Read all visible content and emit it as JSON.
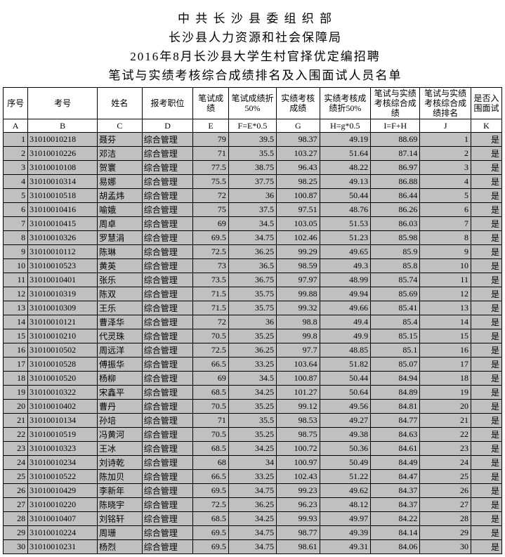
{
  "titles": [
    "中 共 长 沙 县 委 组 织 部",
    "长沙县人力资源和社会保障局",
    "2016年8月长沙县大学生村官择优定编招聘",
    "笔试与实绩考核综合成绩排名及入围面试人员名单"
  ],
  "headers": [
    "序号",
    "考号",
    "姓名",
    "报考职位",
    "笔试成绩",
    "笔试成绩折50%",
    "实绩考核成绩",
    "实绩考核成绩折50%",
    "笔试与实绩考核综合成绩",
    "笔试与实绩考核综合成绩排名",
    "是否入围面试"
  ],
  "letters": [
    "A",
    "B",
    "C",
    "D",
    "E",
    "F=E*0.5",
    "G",
    "H=g*0.5",
    "I=F+H",
    "J",
    "K"
  ],
  "rows": [
    {
      "i": "1",
      "e": "31010010218",
      "n": "聂芬",
      "p": "综合管理",
      "s": "79",
      "f": "39.5",
      "g": "98.37",
      "h": "49.19",
      "t": "88.69",
      "r": "1",
      "k": "是"
    },
    {
      "i": "2",
      "e": "31010010226",
      "n": "邓洁",
      "p": "综合管理",
      "s": "71",
      "f": "35.5",
      "g": "103.27",
      "h": "51.64",
      "t": "87.14",
      "r": "2",
      "k": "是"
    },
    {
      "i": "3",
      "e": "31010010108",
      "n": "贺寰",
      "p": "综合管理",
      "s": "77.5",
      "f": "38.75",
      "g": "96.43",
      "h": "48.22",
      "t": "86.97",
      "r": "3",
      "k": "是"
    },
    {
      "i": "4",
      "e": "31010010314",
      "n": "易娜",
      "p": "综合管理",
      "s": "75.5",
      "f": "37.75",
      "g": "98.25",
      "h": "49.13",
      "t": "86.88",
      "r": "4",
      "k": "是"
    },
    {
      "i": "5",
      "e": "31010010518",
      "n": "胡孟炜",
      "p": "综合管理",
      "s": "72",
      "f": "36",
      "g": "100.87",
      "h": "50.44",
      "t": "86.44",
      "r": "5",
      "k": "是"
    },
    {
      "i": "6",
      "e": "31010010416",
      "n": "喻娥",
      "p": "综合管理",
      "s": "75",
      "f": "37.5",
      "g": "97.51",
      "h": "48.76",
      "t": "86.26",
      "r": "6",
      "k": "是"
    },
    {
      "i": "7",
      "e": "31010010415",
      "n": "周卓",
      "p": "综合管理",
      "s": "69",
      "f": "34.5",
      "g": "103.05",
      "h": "51.53",
      "t": "86.03",
      "r": "7",
      "k": "是"
    },
    {
      "i": "8",
      "e": "31010010326",
      "n": "罗慧涓",
      "p": "综合管理",
      "s": "69.5",
      "f": "34.75",
      "g": "102.46",
      "h": "51.23",
      "t": "85.98",
      "r": "8",
      "k": "是"
    },
    {
      "i": "9",
      "e": "31010010112",
      "n": "陈琳",
      "p": "综合管理",
      "s": "72.5",
      "f": "36.25",
      "g": "99.29",
      "h": "49.65",
      "t": "85.9",
      "r": "9",
      "k": "是"
    },
    {
      "i": "10",
      "e": "31010010523",
      "n": "黄英",
      "p": "综合管理",
      "s": "73",
      "f": "36.5",
      "g": "98.59",
      "h": "49.3",
      "t": "85.8",
      "r": "10",
      "k": "是"
    },
    {
      "i": "11",
      "e": "31010010401",
      "n": "张乐",
      "p": "综合管理",
      "s": "73.5",
      "f": "36.75",
      "g": "97.97",
      "h": "48.99",
      "t": "85.74",
      "r": "11",
      "k": "是"
    },
    {
      "i": "12",
      "e": "31010010319",
      "n": "陈双",
      "p": "综合管理",
      "s": "71.5",
      "f": "35.75",
      "g": "99.88",
      "h": "49.94",
      "t": "85.69",
      "r": "12",
      "k": "是"
    },
    {
      "i": "13",
      "e": "31010010309",
      "n": "王乐",
      "p": "综合管理",
      "s": "71.5",
      "f": "35.75",
      "g": "99.32",
      "h": "49.66",
      "t": "85.41",
      "r": "13",
      "k": "是"
    },
    {
      "i": "14",
      "e": "31010010121",
      "n": "曹泽华",
      "p": "综合管理",
      "s": "72",
      "f": "36",
      "g": "98.8",
      "h": "49.4",
      "t": "85.4",
      "r": "14",
      "k": "是"
    },
    {
      "i": "15",
      "e": "31010010210",
      "n": "代灵珠",
      "p": "综合管理",
      "s": "70.5",
      "f": "35.25",
      "g": "99.8",
      "h": "49.9",
      "t": "85.15",
      "r": "15",
      "k": "是"
    },
    {
      "i": "16",
      "e": "31010010502",
      "n": "周远洋",
      "p": "综合管理",
      "s": "72.5",
      "f": "36.25",
      "g": "97.7",
      "h": "48.85",
      "t": "85.1",
      "r": "16",
      "k": "是"
    },
    {
      "i": "17",
      "e": "31010010528",
      "n": "傅振华",
      "p": "综合管理",
      "s": "66.5",
      "f": "33.25",
      "g": "103.64",
      "h": "51.82",
      "t": "85.07",
      "r": "17",
      "k": "是"
    },
    {
      "i": "18",
      "e": "31010010520",
      "n": "杨柳",
      "p": "综合管理",
      "s": "69",
      "f": "34.5",
      "g": "100.87",
      "h": "50.44",
      "t": "84.94",
      "r": "18",
      "k": "是"
    },
    {
      "i": "19",
      "e": "31010010322",
      "n": "宋鑫平",
      "p": "综合管理",
      "s": "68.5",
      "f": "34.25",
      "g": "101.27",
      "h": "50.64",
      "t": "84.89",
      "r": "19",
      "k": "是"
    },
    {
      "i": "20",
      "e": "31010010402",
      "n": "曹丹",
      "p": "综合管理",
      "s": "70.5",
      "f": "35.25",
      "g": "99.12",
      "h": "49.56",
      "t": "84.81",
      "r": "20",
      "k": "是"
    },
    {
      "i": "21",
      "e": "31010010134",
      "n": "孙培",
      "p": "综合管理",
      "s": "71",
      "f": "35.5",
      "g": "98.53",
      "h": "49.27",
      "t": "84.77",
      "r": "21",
      "k": "是"
    },
    {
      "i": "22",
      "e": "31010010519",
      "n": "冯黄河",
      "p": "综合管理",
      "s": "70.5",
      "f": "35.25",
      "g": "98.75",
      "h": "49.38",
      "t": "84.63",
      "r": "22",
      "k": "是"
    },
    {
      "i": "23",
      "e": "31010010323",
      "n": "王冰",
      "p": "综合管理",
      "s": "68.5",
      "f": "34.25",
      "g": "100.72",
      "h": "50.36",
      "t": "84.61",
      "r": "23",
      "k": "是"
    },
    {
      "i": "24",
      "e": "31010010234",
      "n": "刘诗乾",
      "p": "综合管理",
      "s": "68",
      "f": "34",
      "g": "100.97",
      "h": "50.49",
      "t": "84.49",
      "r": "24",
      "k": "是"
    },
    {
      "i": "25",
      "e": "31010010522",
      "n": "陈加贝",
      "p": "综合管理",
      "s": "66.5",
      "f": "33.25",
      "g": "102.43",
      "h": "51.22",
      "t": "84.47",
      "r": "25",
      "k": "是"
    },
    {
      "i": "26",
      "e": "31010010429",
      "n": "李新年",
      "p": "综合管理",
      "s": "69.5",
      "f": "34.75",
      "g": "99.23",
      "h": "49.62",
      "t": "84.37",
      "r": "26",
      "k": "是"
    },
    {
      "i": "27",
      "e": "31010010220",
      "n": "陈晓宇",
      "p": "综合管理",
      "s": "72.5",
      "f": "36.25",
      "g": "96.23",
      "h": "48.12",
      "t": "84.37",
      "r": "27",
      "k": "是"
    },
    {
      "i": "28",
      "e": "31010010407",
      "n": "刘铭轩",
      "p": "综合管理",
      "s": "68.5",
      "f": "34.25",
      "g": "99.93",
      "h": "49.97",
      "t": "84.22",
      "r": "28",
      "k": "是"
    },
    {
      "i": "29",
      "e": "31010010224",
      "n": "周珊",
      "p": "综合管理",
      "s": "69.5",
      "f": "34.75",
      "g": "98.77",
      "h": "49.39",
      "t": "84.14",
      "r": "29",
      "k": "是"
    },
    {
      "i": "30",
      "e": "31010010231",
      "n": "杨烈",
      "p": "综合管理",
      "s": "69.5",
      "f": "34.75",
      "g": "98.61",
      "h": "49.31",
      "t": "84.06",
      "r": "30",
      "k": "是"
    }
  ],
  "bg_color": "#c0c0c0"
}
